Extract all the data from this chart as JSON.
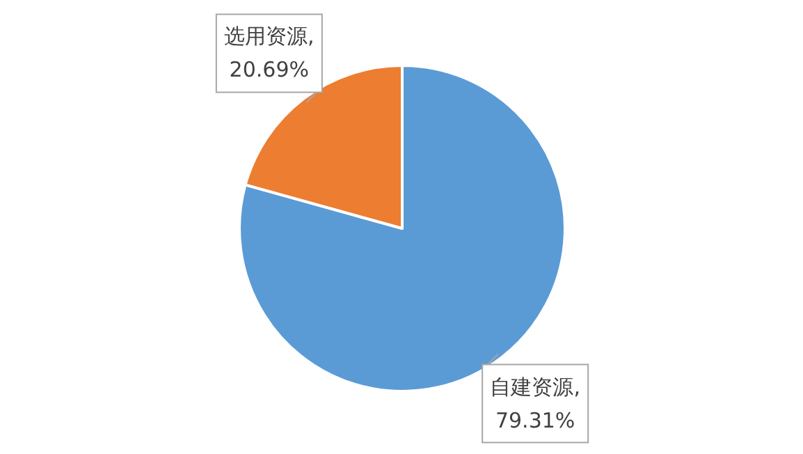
{
  "chart_data": {
    "type": "pie",
    "categories": [
      "自建资源",
      "选用资源"
    ],
    "values": [
      79.31,
      20.69
    ],
    "colors": [
      "#5b9bd5",
      "#ed7d31"
    ],
    "value_labels": [
      ", 79.31%",
      ", 20.69%"
    ],
    "legend": false
  }
}
